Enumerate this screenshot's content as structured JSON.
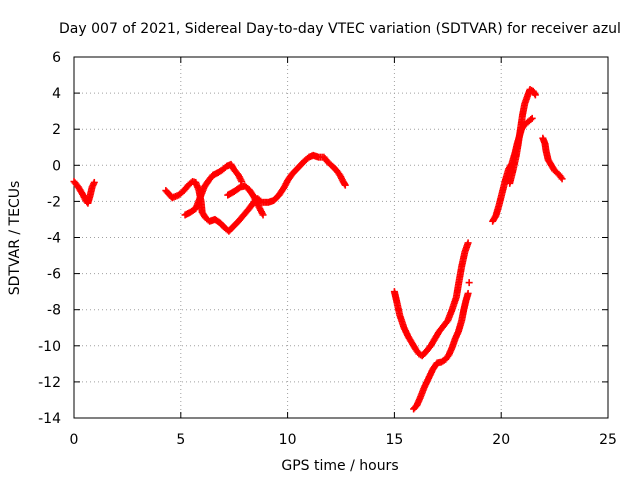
{
  "chart_data": {
    "type": "scatter",
    "title": "Day 007 of 2021, Sidereal Day-to-day VTEC variation (SDTVAR) for receiver azul",
    "xlabel": "GPS time / hours",
    "ylabel": "SDTVAR / TECUs",
    "xlim": [
      0,
      25
    ],
    "ylim": [
      -14,
      6
    ],
    "xticks": [
      0,
      5,
      10,
      15,
      20,
      25
    ],
    "yticks": [
      -14,
      -12,
      -10,
      -8,
      -6,
      -4,
      -2,
      0,
      2,
      4,
      6
    ],
    "grid": true,
    "marker_color": "#ff0000",
    "marker": "plus",
    "segments": [
      {
        "points": [
          [
            0,
            -0.9
          ],
          [
            0.2,
            -1.2
          ],
          [
            0.4,
            -1.6
          ],
          [
            0.55,
            -1.95
          ],
          [
            0.65,
            -2.1
          ],
          [
            0.75,
            -1.7
          ],
          [
            0.85,
            -1.2
          ],
          [
            0.95,
            -0.95
          ]
        ]
      },
      {
        "points": [
          [
            4.3,
            -1.4
          ],
          [
            4.6,
            -1.8
          ],
          [
            4.9,
            -1.65
          ],
          [
            5.15,
            -1.4
          ],
          [
            5.35,
            -1.1
          ],
          [
            5.55,
            -0.9
          ],
          [
            5.7,
            -0.95
          ],
          [
            5.85,
            -1.4
          ],
          [
            5.95,
            -2.0
          ],
          [
            6.0,
            -2.6
          ],
          [
            6.15,
            -2.9
          ],
          [
            6.35,
            -3.1
          ],
          [
            6.6,
            -3.0
          ],
          [
            6.85,
            -3.2
          ],
          [
            7.05,
            -3.45
          ],
          [
            7.25,
            -3.65
          ],
          [
            7.45,
            -3.4
          ],
          [
            7.7,
            -3.1
          ],
          [
            7.95,
            -2.75
          ],
          [
            8.2,
            -2.4
          ],
          [
            8.45,
            -2.0
          ],
          [
            8.6,
            -1.85
          ],
          [
            8.8,
            -2.05
          ],
          [
            9.1,
            -2.05
          ],
          [
            9.35,
            -1.95
          ],
          [
            9.6,
            -1.65
          ],
          [
            9.85,
            -1.2
          ],
          [
            10.0,
            -0.85
          ],
          [
            10.2,
            -0.5
          ],
          [
            10.4,
            -0.25
          ],
          [
            10.6,
            0.0
          ],
          [
            10.8,
            0.25
          ],
          [
            11.0,
            0.45
          ],
          [
            11.2,
            0.55
          ],
          [
            11.45,
            0.45
          ],
          [
            11.7,
            0.45
          ],
          [
            11.9,
            0.15
          ],
          [
            12.1,
            -0.05
          ],
          [
            12.3,
            -0.3
          ],
          [
            12.45,
            -0.55
          ],
          [
            12.6,
            -0.9
          ],
          [
            12.7,
            -1.1
          ]
        ]
      },
      {
        "points": [
          [
            5.2,
            -2.75
          ],
          [
            5.45,
            -2.6
          ],
          [
            5.7,
            -2.4
          ],
          [
            5.9,
            -1.8
          ],
          [
            6.1,
            -1.2
          ],
          [
            6.3,
            -0.85
          ],
          [
            6.5,
            -0.55
          ],
          [
            6.75,
            -0.4
          ],
          [
            6.95,
            -0.25
          ],
          [
            7.15,
            -0.05
          ],
          [
            7.35,
            0.05
          ],
          [
            7.5,
            -0.25
          ],
          [
            7.7,
            -0.55
          ],
          [
            7.85,
            -0.9
          ]
        ]
      },
      {
        "points": [
          [
            7.2,
            -1.65
          ],
          [
            7.5,
            -1.45
          ],
          [
            7.8,
            -1.2
          ],
          [
            8.0,
            -1.15
          ],
          [
            8.2,
            -1.35
          ],
          [
            8.4,
            -1.7
          ],
          [
            8.55,
            -2.05
          ],
          [
            8.7,
            -2.4
          ],
          [
            8.85,
            -2.75
          ]
        ]
      },
      {
        "points": [
          [
            15.0,
            -7.0
          ],
          [
            15.1,
            -7.5
          ],
          [
            15.25,
            -8.3
          ],
          [
            15.45,
            -9.0
          ],
          [
            15.65,
            -9.5
          ],
          [
            15.85,
            -9.9
          ],
          [
            16.0,
            -10.2
          ],
          [
            16.15,
            -10.45
          ],
          [
            16.3,
            -10.55
          ],
          [
            16.5,
            -10.3
          ],
          [
            16.7,
            -10.0
          ],
          [
            16.9,
            -9.6
          ],
          [
            17.1,
            -9.2
          ],
          [
            17.3,
            -8.9
          ],
          [
            17.5,
            -8.6
          ],
          [
            17.7,
            -8.0
          ],
          [
            17.9,
            -7.3
          ],
          [
            18.0,
            -6.6
          ],
          [
            18.15,
            -5.6
          ],
          [
            18.3,
            -4.8
          ],
          [
            18.45,
            -4.3
          ]
        ]
      },
      {
        "points": [
          [
            15.9,
            -13.5
          ],
          [
            16.05,
            -13.3
          ],
          [
            16.2,
            -12.9
          ],
          [
            16.4,
            -12.3
          ],
          [
            16.6,
            -11.8
          ],
          [
            16.8,
            -11.3
          ],
          [
            17.0,
            -10.95
          ],
          [
            17.2,
            -10.9
          ],
          [
            17.4,
            -10.75
          ],
          [
            17.55,
            -10.5
          ],
          [
            17.7,
            -10.1
          ],
          [
            17.85,
            -9.6
          ],
          [
            18.0,
            -9.2
          ],
          [
            18.15,
            -8.6
          ],
          [
            18.25,
            -8.0
          ],
          [
            18.35,
            -7.5
          ],
          [
            18.45,
            -7.1
          ]
        ]
      },
      {
        "points": [
          [
            18.5,
            -6.5
          ]
        ]
      },
      {
        "points": [
          [
            19.6,
            -3.1
          ],
          [
            19.75,
            -2.8
          ],
          [
            19.9,
            -2.2
          ],
          [
            20.05,
            -1.5
          ],
          [
            20.2,
            -0.8
          ],
          [
            20.35,
            -0.2
          ],
          [
            20.5,
            0.1
          ],
          [
            20.65,
            0.7
          ],
          [
            20.75,
            1.2
          ],
          [
            20.85,
            1.6
          ],
          [
            20.95,
            2.0
          ],
          [
            21.05,
            2.2
          ],
          [
            21.25,
            2.4
          ],
          [
            21.45,
            2.6
          ]
        ]
      },
      {
        "points": [
          [
            20.4,
            -1.0
          ],
          [
            20.55,
            -0.3
          ],
          [
            20.7,
            0.5
          ],
          [
            20.8,
            1.2
          ],
          [
            20.9,
            2.0
          ],
          [
            21.0,
            2.8
          ],
          [
            21.1,
            3.4
          ],
          [
            21.25,
            3.9
          ],
          [
            21.35,
            4.2
          ],
          [
            21.5,
            4.1
          ],
          [
            21.6,
            3.9
          ]
        ]
      },
      {
        "points": [
          [
            21.95,
            1.5
          ],
          [
            22.05,
            1.2
          ],
          [
            22.1,
            0.8
          ],
          [
            22.2,
            0.3
          ],
          [
            22.35,
            0.0
          ],
          [
            22.5,
            -0.3
          ],
          [
            22.7,
            -0.5
          ],
          [
            22.85,
            -0.75
          ]
        ]
      }
    ]
  }
}
